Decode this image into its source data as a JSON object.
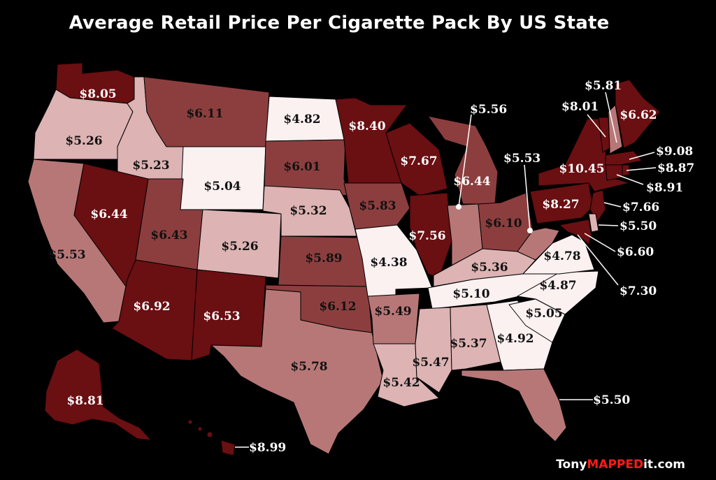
{
  "title": "Average Retail Price Per Cigarette Pack By US State",
  "credit": {
    "part1": "Tony",
    "part2": "MAPPED",
    "part3": "it.com"
  },
  "colors": {
    "background": "#000000",
    "tier_lowest": "#fbf1f1",
    "tier_low": "#ddb3b3",
    "tier_mid": "#b87777",
    "tier_high": "#8c3e3e",
    "tier_highest": "#6a0f12"
  },
  "states": {
    "WA": "$8.05",
    "OR": "$5.26",
    "CA": "$5.53",
    "ID": "$5.23",
    "NV": "$6.44",
    "MT": "$6.11",
    "WY": "$5.04",
    "UT": "$6.43",
    "AZ": "$6.92",
    "CO": "$5.26",
    "NM": "$6.53",
    "ND": "$4.82",
    "SD": "$6.01",
    "NE": "$5.32",
    "KS": "$5.89",
    "OK": "$6.12",
    "TX": "$5.78",
    "MN": "$8.40",
    "IA": "$5.83",
    "MO": "$4.38",
    "AR": "$5.49",
    "LA": "$5.42",
    "WI": "$7.67",
    "IL": "$7.56",
    "MI": "$6.44",
    "IN": "$5.56",
    "OH": "$6.10",
    "KY": "$5.36",
    "TN": "$5.10",
    "MS": "$5.47",
    "AL": "$5.37",
    "GA": "$4.92",
    "FL": "$5.50",
    "SC": "$5.05",
    "NC": "$4.87",
    "VA": "$4.78",
    "WV": "$5.53",
    "PA": "$8.27",
    "NY": "$10.45",
    "VT": "$8.01",
    "NH": "$5.81",
    "ME": "$6.62",
    "MA": "$9.08",
    "RI": "$8.87",
    "CT": "$8.91",
    "NJ": "$7.66",
    "DE": "$5.50",
    "MD": "$6.60",
    "DC": "$7.30",
    "AK": "$8.81",
    "HI": "$8.99"
  }
}
